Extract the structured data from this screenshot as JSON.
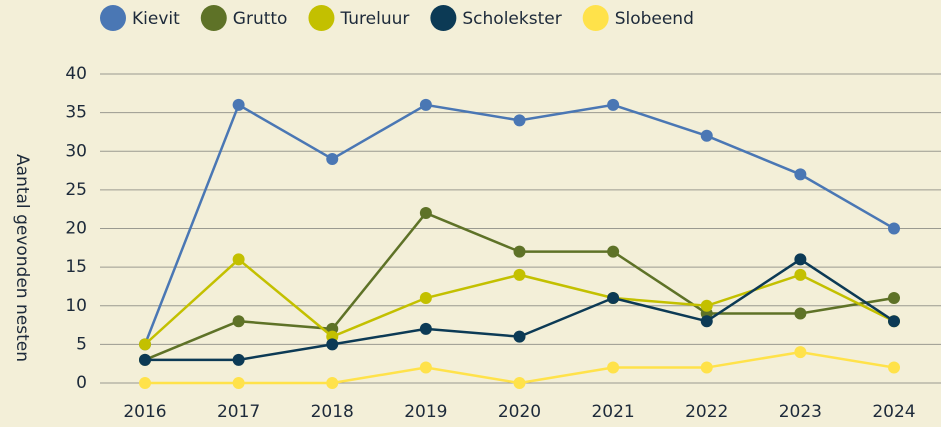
{
  "chart_data": {
    "type": "line",
    "y_label": "Aantal gevonden nesten",
    "categories": [
      "2016",
      "2017",
      "2018",
      "2019",
      "2020",
      "2021",
      "2022",
      "2023",
      "2024"
    ],
    "series": [
      {
        "name": "Kievit",
        "color": "#4a77b4",
        "values": [
          5,
          36,
          29,
          36,
          34,
          36,
          32,
          27,
          20
        ]
      },
      {
        "name": "Grutto",
        "color": "#5e7227",
        "values": [
          3,
          8,
          7,
          22,
          17,
          17,
          9,
          9,
          11
        ]
      },
      {
        "name": "Tureluur",
        "color": "#c3c000",
        "values": [
          5,
          16,
          6,
          11,
          14,
          11,
          10,
          14,
          8
        ]
      },
      {
        "name": "Scholekster",
        "color": "#0c3a55",
        "values": [
          3,
          3,
          5,
          7,
          6,
          11,
          8,
          16,
          8
        ]
      },
      {
        "name": "Slobeend",
        "color": "#ffe24a",
        "values": [
          0,
          0,
          0,
          2,
          0,
          2,
          2,
          4,
          2
        ]
      }
    ],
    "ylim": [
      0,
      40
    ],
    "yticks": [
      0,
      5,
      10,
      15,
      20,
      25,
      30,
      35,
      40
    ],
    "grid": true,
    "legend": "top"
  }
}
